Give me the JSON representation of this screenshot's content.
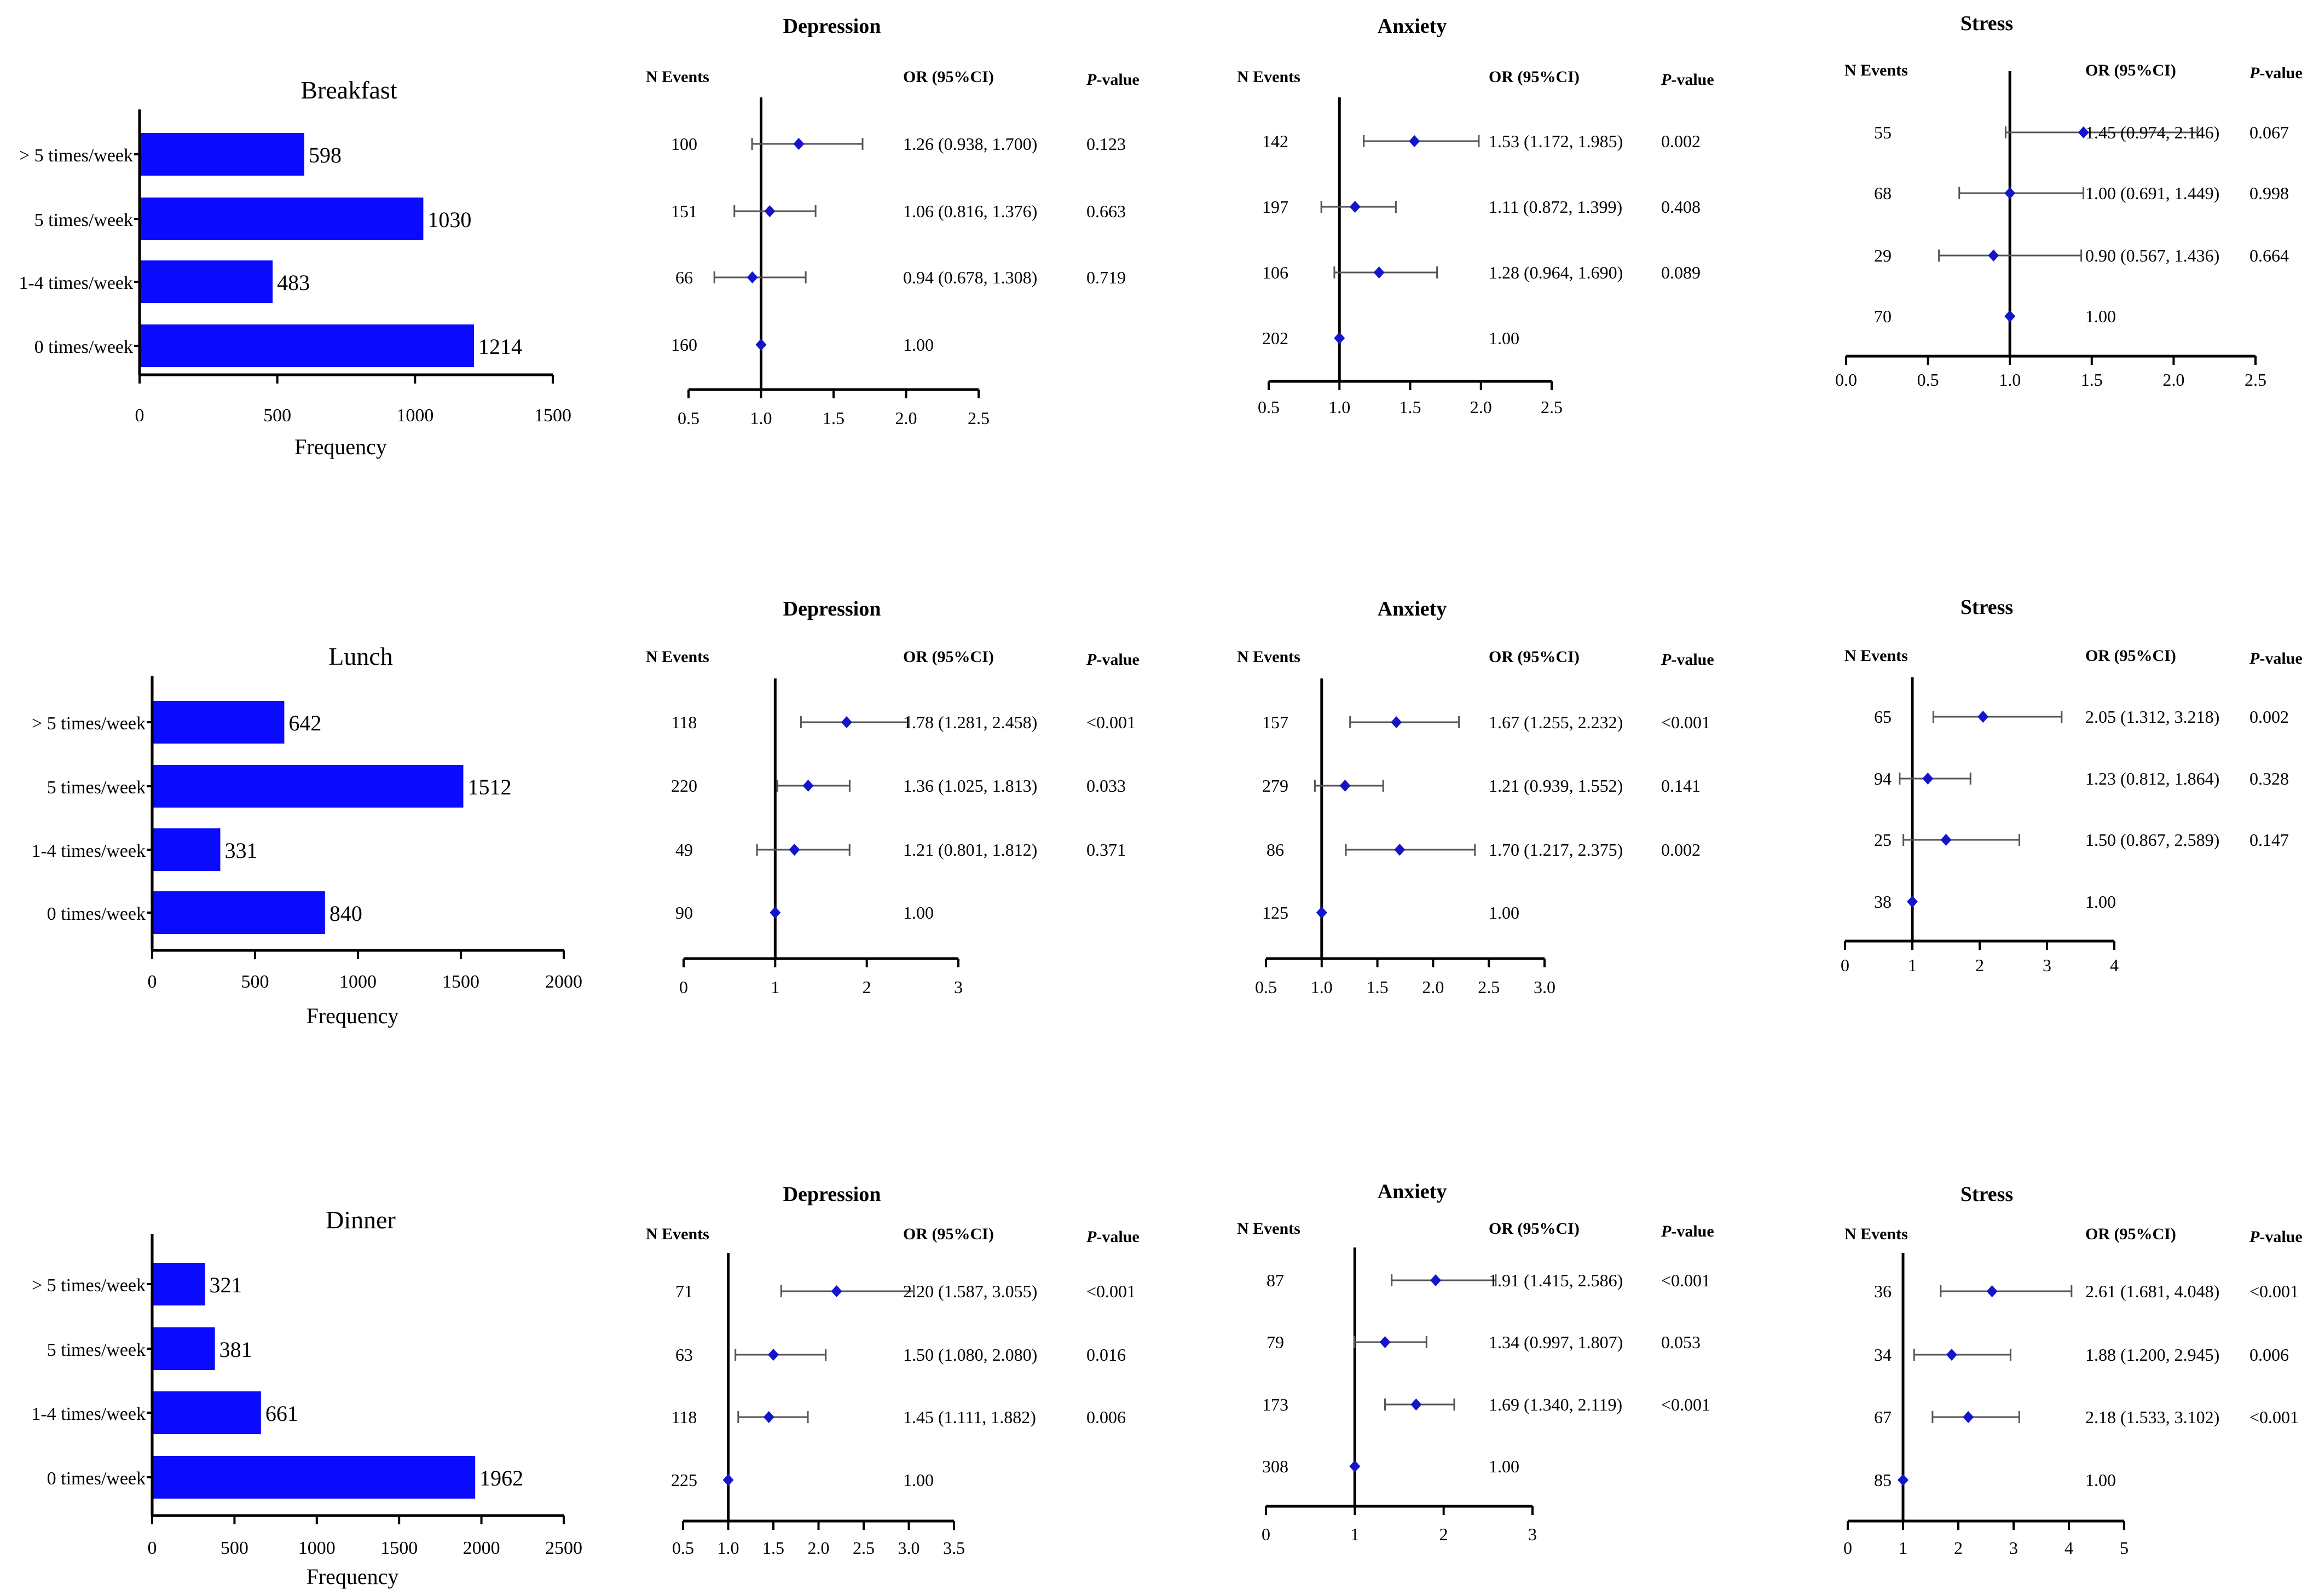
{
  "colors": {
    "bar": "#0a0aff",
    "point": "#1515c8",
    "axis": "#000000",
    "ci": "#555555",
    "background": "#ffffff"
  },
  "chart_data": [
    {
      "type": "bar",
      "orientation": "horizontal",
      "id": "bar-breakfast",
      "title": "Breakfast",
      "xlabel": "Frequency",
      "ylabel": "",
      "categories": [
        "> 5 times/week",
        "5 times/week",
        "1-4 times/week",
        "0 times/week"
      ],
      "values": [
        598,
        1030,
        483,
        1214
      ],
      "xlim": [
        0,
        1500
      ],
      "ticks": [
        0,
        500,
        1000,
        1500
      ],
      "tick_labels": [
        "0",
        "500",
        "1000",
        "1500"
      ],
      "grid": false
    },
    {
      "type": "forest",
      "id": "forest-breakfast-depression",
      "title": "Depression",
      "headers": {
        "events": "N Events",
        "or": "OR (95%CI)",
        "p": "P-value"
      },
      "rows": [
        {
          "events": "100",
          "or": 1.26,
          "lo": 0.938,
          "hi": 1.7,
          "or_text": "1.26 (0.938, 1.700)",
          "p": "0.123"
        },
        {
          "events": "151",
          "or": 1.06,
          "lo": 0.816,
          "hi": 1.376,
          "or_text": "1.06 (0.816, 1.376)",
          "p": "0.663"
        },
        {
          "events": "66",
          "or": 0.94,
          "lo": 0.678,
          "hi": 1.308,
          "or_text": "0.94 (0.678, 1.308)",
          "p": "0.719"
        },
        {
          "events": "160",
          "or": 1.0,
          "lo": 1.0,
          "hi": 1.0,
          "or_text": "1.00",
          "p": ""
        }
      ],
      "xlim": [
        0.5,
        2.5
      ],
      "ticks": [
        0.5,
        1.0,
        1.5,
        2.0,
        2.5
      ],
      "tick_labels": [
        "0.5",
        "1.0",
        "1.5",
        "2.0",
        "2.5"
      ],
      "ref": 1
    },
    {
      "type": "forest",
      "id": "forest-breakfast-anxiety",
      "title": "Anxiety",
      "headers": {
        "events": "N Events",
        "or": "OR (95%CI)",
        "p": "P-value"
      },
      "rows": [
        {
          "events": "142",
          "or": 1.53,
          "lo": 1.172,
          "hi": 1.985,
          "or_text": "1.53 (1.172, 1.985)",
          "p": "0.002"
        },
        {
          "events": "197",
          "or": 1.11,
          "lo": 0.872,
          "hi": 1.399,
          "or_text": "1.11 (0.872, 1.399)",
          "p": "0.408"
        },
        {
          "events": "106",
          "or": 1.28,
          "lo": 0.964,
          "hi": 1.69,
          "or_text": "1.28 (0.964, 1.690)",
          "p": "0.089"
        },
        {
          "events": "202",
          "or": 1.0,
          "lo": 1.0,
          "hi": 1.0,
          "or_text": "1.00",
          "p": ""
        }
      ],
      "xlim": [
        0.5,
        2.5
      ],
      "ticks": [
        0.5,
        1.0,
        1.5,
        2.0,
        2.5
      ],
      "tick_labels": [
        "0.5",
        "1.0",
        "1.5",
        "2.0",
        "2.5"
      ],
      "ref": 1
    },
    {
      "type": "forest",
      "id": "forest-breakfast-stress",
      "title": "Stress",
      "headers": {
        "events": "N Events",
        "or": "OR (95%CI)",
        "p": "P-value"
      },
      "rows": [
        {
          "events": "55",
          "or": 1.45,
          "lo": 0.974,
          "hi": 2.146,
          "or_text": "1.45 (0.974, 2.146)",
          "p": "0.067"
        },
        {
          "events": "68",
          "or": 1.0,
          "lo": 0.691,
          "hi": 1.449,
          "or_text": "1.00 (0.691, 1.449)",
          "p": "0.998"
        },
        {
          "events": "29",
          "or": 0.9,
          "lo": 0.567,
          "hi": 1.436,
          "or_text": "0.90 (0.567, 1.436)",
          "p": "0.664"
        },
        {
          "events": "70",
          "or": 1.0,
          "lo": 1.0,
          "hi": 1.0,
          "or_text": "1.00",
          "p": ""
        }
      ],
      "xlim": [
        0.0,
        2.5
      ],
      "ticks": [
        0.0,
        0.5,
        1.0,
        1.5,
        2.0,
        2.5
      ],
      "tick_labels": [
        "0.0",
        "0.5",
        "1.0",
        "1.5",
        "2.0",
        "2.5"
      ],
      "ref": 1
    },
    {
      "type": "bar",
      "orientation": "horizontal",
      "id": "bar-lunch",
      "title": "Lunch",
      "xlabel": "Frequency",
      "ylabel": "",
      "categories": [
        "> 5 times/week",
        "5 times/week",
        "1-4 times/week",
        "0 times/week"
      ],
      "values": [
        642,
        1512,
        331,
        840
      ],
      "xlim": [
        0,
        2000
      ],
      "ticks": [
        0,
        500,
        1000,
        1500,
        2000
      ],
      "tick_labels": [
        "0",
        "500",
        "1000",
        "1500",
        "2000"
      ],
      "grid": false
    },
    {
      "type": "forest",
      "id": "forest-lunch-depression",
      "title": "Depression",
      "headers": {
        "events": "N Events",
        "or": "OR (95%CI)",
        "p": "P-value"
      },
      "rows": [
        {
          "events": "118",
          "or": 1.78,
          "lo": 1.281,
          "hi": 2.458,
          "or_text": "1.78 (1.281, 2.458)",
          "p": "<0.001"
        },
        {
          "events": "220",
          "or": 1.36,
          "lo": 1.025,
          "hi": 1.813,
          "or_text": "1.36 (1.025, 1.813)",
          "p": "0.033"
        },
        {
          "events": "49",
          "or": 1.21,
          "lo": 0.801,
          "hi": 1.812,
          "or_text": "1.21 (0.801, 1.812)",
          "p": "0.371"
        },
        {
          "events": "90",
          "or": 1.0,
          "lo": 1.0,
          "hi": 1.0,
          "or_text": "1.00",
          "p": ""
        }
      ],
      "xlim": [
        0,
        3
      ],
      "ticks": [
        0,
        1,
        2,
        3
      ],
      "tick_labels": [
        "0",
        "1",
        "2",
        "3"
      ],
      "ref": 1
    },
    {
      "type": "forest",
      "id": "forest-lunch-anxiety",
      "title": "Anxiety",
      "headers": {
        "events": "N Events",
        "or": "OR (95%CI)",
        "p": "P-value"
      },
      "rows": [
        {
          "events": "157",
          "or": 1.67,
          "lo": 1.255,
          "hi": 2.232,
          "or_text": "1.67 (1.255, 2.232)",
          "p": "<0.001"
        },
        {
          "events": "279",
          "or": 1.21,
          "lo": 0.939,
          "hi": 1.552,
          "or_text": "1.21 (0.939, 1.552)",
          "p": "0.141"
        },
        {
          "events": "86",
          "or": 1.7,
          "lo": 1.217,
          "hi": 2.375,
          "or_text": "1.70 (1.217, 2.375)",
          "p": "0.002"
        },
        {
          "events": "125",
          "or": 1.0,
          "lo": 1.0,
          "hi": 1.0,
          "or_text": "1.00",
          "p": ""
        }
      ],
      "xlim": [
        0.5,
        3.0
      ],
      "ticks": [
        0.5,
        1.0,
        1.5,
        2.0,
        2.5,
        3.0
      ],
      "tick_labels": [
        "0.5",
        "1.0",
        "1.5",
        "2.0",
        "2.5",
        "3.0"
      ],
      "ref": 1
    },
    {
      "type": "forest",
      "id": "forest-lunch-stress",
      "title": "Stress",
      "headers": {
        "events": "N Events",
        "or": "OR (95%CI)",
        "p": "P-value"
      },
      "rows": [
        {
          "events": "65",
          "or": 2.05,
          "lo": 1.312,
          "hi": 3.218,
          "or_text": "2.05 (1.312, 3.218)",
          "p": "0.002"
        },
        {
          "events": "94",
          "or": 1.23,
          "lo": 0.812,
          "hi": 1.864,
          "or_text": "1.23 (0.812, 1.864)",
          "p": "0.328"
        },
        {
          "events": "25",
          "or": 1.5,
          "lo": 0.867,
          "hi": 2.589,
          "or_text": "1.50 (0.867, 2.589)",
          "p": "0.147"
        },
        {
          "events": "38",
          "or": 1.0,
          "lo": 1.0,
          "hi": 1.0,
          "or_text": "1.00",
          "p": ""
        }
      ],
      "xlim": [
        0,
        4
      ],
      "ticks": [
        0,
        1,
        2,
        3,
        4
      ],
      "tick_labels": [
        "0",
        "1",
        "2",
        "3",
        "4"
      ],
      "ref": 1
    },
    {
      "type": "bar",
      "orientation": "horizontal",
      "id": "bar-dinner",
      "title": "Dinner",
      "xlabel": "Frequency",
      "ylabel": "",
      "categories": [
        "> 5 times/week",
        "5 times/week",
        "1-4 times/week",
        "0 times/week"
      ],
      "values": [
        321,
        381,
        661,
        1962
      ],
      "xlim": [
        0,
        2500
      ],
      "ticks": [
        0,
        500,
        1000,
        1500,
        2000,
        2500
      ],
      "tick_labels": [
        "0",
        "500",
        "1000",
        "1500",
        "2000",
        "2500"
      ],
      "grid": false
    },
    {
      "type": "forest",
      "id": "forest-dinner-depression",
      "title": "Depression",
      "headers": {
        "events": "N Events",
        "or": "OR (95%CI)",
        "p": "P-value"
      },
      "rows": [
        {
          "events": "71",
          "or": 2.2,
          "lo": 1.587,
          "hi": 3.055,
          "or_text": "2.20 (1.587, 3.055)",
          "p": "<0.001"
        },
        {
          "events": "63",
          "or": 1.5,
          "lo": 1.08,
          "hi": 2.08,
          "or_text": "1.50 (1.080, 2.080)",
          "p": "0.016"
        },
        {
          "events": "118",
          "or": 1.45,
          "lo": 1.111,
          "hi": 1.882,
          "or_text": "1.45 (1.111, 1.882)",
          "p": "0.006"
        },
        {
          "events": "225",
          "or": 1.0,
          "lo": 1.0,
          "hi": 1.0,
          "or_text": "1.00",
          "p": ""
        }
      ],
      "xlim": [
        0.5,
        3.5
      ],
      "ticks": [
        0.5,
        1.0,
        1.5,
        2.0,
        2.5,
        3.0,
        3.5
      ],
      "tick_labels": [
        "0.5",
        "1.0",
        "1.5",
        "2.0",
        "2.5",
        "3.0",
        "3.5"
      ],
      "ref": 1
    },
    {
      "type": "forest",
      "id": "forest-dinner-anxiety",
      "title": "Anxiety",
      "headers": {
        "events": "N Events",
        "or": "OR (95%CI)",
        "p": "P-value"
      },
      "rows": [
        {
          "events": "87",
          "or": 1.91,
          "lo": 1.415,
          "hi": 2.586,
          "or_text": "1.91 (1.415, 2.586)",
          "p": "<0.001"
        },
        {
          "events": "79",
          "or": 1.34,
          "lo": 0.997,
          "hi": 1.807,
          "or_text": "1.34 (0.997, 1.807)",
          "p": "0.053"
        },
        {
          "events": "173",
          "or": 1.69,
          "lo": 1.34,
          "hi": 2.119,
          "or_text": "1.69 (1.340, 2.119)",
          "p": "<0.001"
        },
        {
          "events": "308",
          "or": 1.0,
          "lo": 1.0,
          "hi": 1.0,
          "or_text": "1.00",
          "p": ""
        }
      ],
      "xlim": [
        0,
        3
      ],
      "ticks": [
        0,
        1,
        2,
        3
      ],
      "tick_labels": [
        "0",
        "1",
        "2",
        "3"
      ],
      "ref": 1
    },
    {
      "type": "forest",
      "id": "forest-dinner-stress",
      "title": "Stress",
      "headers": {
        "events": "N Events",
        "or": "OR (95%CI)",
        "p": "P-value"
      },
      "rows": [
        {
          "events": "36",
          "or": 2.61,
          "lo": 1.681,
          "hi": 4.048,
          "or_text": "2.61 (1.681, 4.048)",
          "p": "<0.001"
        },
        {
          "events": "34",
          "or": 1.88,
          "lo": 1.2,
          "hi": 2.945,
          "or_text": "1.88 (1.200, 2.945)",
          "p": "0.006"
        },
        {
          "events": "67",
          "or": 2.18,
          "lo": 1.533,
          "hi": 3.102,
          "or_text": "2.18 (1.533, 3.102)",
          "p": "<0.001"
        },
        {
          "events": "85",
          "or": 1.0,
          "lo": 1.0,
          "hi": 1.0,
          "or_text": "1.00",
          "p": ""
        }
      ],
      "xlim": [
        0,
        5
      ],
      "ticks": [
        0,
        1,
        2,
        3,
        4,
        5
      ],
      "tick_labels": [
        "0",
        "1",
        "2",
        "3",
        "4",
        "5"
      ],
      "ref": 1
    }
  ]
}
